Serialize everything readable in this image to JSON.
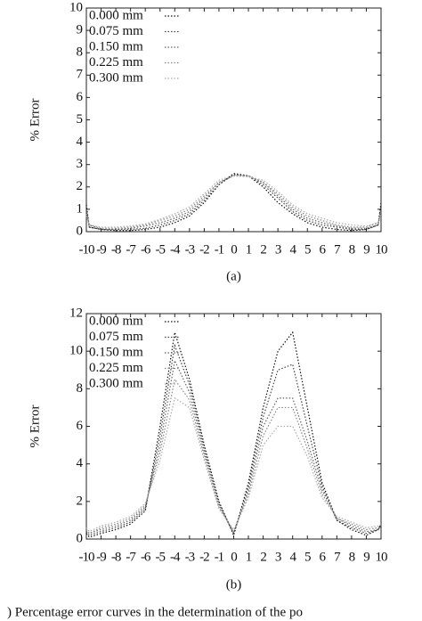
{
  "chart_data": [
    {
      "type": "line",
      "caption": "(a)",
      "y_label": "% Error",
      "x": [
        -10,
        -9.8,
        -9,
        -8,
        -7,
        -6,
        -5,
        -4,
        -3,
        -2,
        -1,
        0,
        1,
        2,
        3,
        4,
        5,
        6,
        7,
        8,
        9,
        9.8,
        10
      ],
      "xlim": [
        -10,
        10
      ],
      "ylim": [
        0,
        10
      ],
      "xticks": [
        -10,
        -9,
        -8,
        -7,
        -6,
        -5,
        -4,
        -3,
        -2,
        -1,
        0,
        1,
        2,
        3,
        4,
        5,
        6,
        7,
        8,
        9,
        10
      ],
      "yticks": [
        0,
        1,
        2,
        3,
        4,
        5,
        6,
        7,
        8,
        9,
        10
      ],
      "series": [
        {
          "name": "0.000 mm",
          "color": "#111111",
          "values": [
            1.2,
            0.2,
            0.1,
            0.05,
            0.05,
            0.1,
            0.2,
            0.4,
            0.7,
            1.3,
            2.1,
            2.6,
            2.5,
            2.0,
            1.3,
            0.8,
            0.4,
            0.2,
            0.1,
            0.05,
            0.1,
            0.3,
            1.3
          ]
        },
        {
          "name": "0.075 mm",
          "color": "#444444",
          "values": [
            1.0,
            0.2,
            0.1,
            0.1,
            0.1,
            0.15,
            0.3,
            0.5,
            0.8,
            1.4,
            2.1,
            2.55,
            2.5,
            2.1,
            1.5,
            0.9,
            0.5,
            0.3,
            0.2,
            0.1,
            0.1,
            0.3,
            1.1
          ]
        },
        {
          "name": "0.150 mm",
          "color": "#666666",
          "values": [
            0.9,
            0.3,
            0.1,
            0.1,
            0.15,
            0.25,
            0.4,
            0.6,
            0.9,
            1.5,
            2.2,
            2.5,
            2.5,
            2.2,
            1.6,
            1.0,
            0.6,
            0.4,
            0.25,
            0.15,
            0.15,
            0.3,
            1.0
          ]
        },
        {
          "name": "0.225 mm",
          "color": "#888888",
          "values": [
            0.8,
            0.3,
            0.15,
            0.15,
            0.2,
            0.3,
            0.5,
            0.7,
            1.0,
            1.6,
            2.2,
            2.5,
            2.5,
            2.2,
            1.7,
            1.1,
            0.7,
            0.5,
            0.3,
            0.2,
            0.2,
            0.4,
            0.9
          ]
        },
        {
          "name": "0.300 mm",
          "color": "#aaaaaa",
          "values": [
            0.7,
            0.3,
            0.2,
            0.2,
            0.25,
            0.35,
            0.55,
            0.8,
            1.1,
            1.7,
            2.3,
            2.5,
            2.45,
            2.3,
            1.8,
            1.2,
            0.8,
            0.6,
            0.4,
            0.3,
            0.25,
            0.4,
            0.8
          ]
        }
      ]
    },
    {
      "type": "line",
      "caption": "(b)",
      "y_label": "% Error",
      "x": [
        -10,
        -9.8,
        -9,
        -8,
        -7,
        -6,
        -5,
        -4,
        -3,
        -2,
        -1,
        0,
        1,
        2,
        3,
        4,
        5,
        6,
        7,
        8,
        9,
        9.8,
        10
      ],
      "xlim": [
        -10,
        10
      ],
      "ylim": [
        0,
        12
      ],
      "xticks": [
        -10,
        -9,
        -8,
        -7,
        -6,
        -5,
        -4,
        -3,
        -2,
        -1,
        0,
        1,
        2,
        3,
        4,
        5,
        6,
        7,
        8,
        9,
        10
      ],
      "yticks": [
        0,
        2,
        4,
        6,
        8,
        10,
        12
      ],
      "series": [
        {
          "name": "0.000 mm",
          "color": "#111111",
          "values": [
            0.3,
            0.1,
            0.3,
            0.5,
            0.8,
            1.5,
            6.0,
            11.0,
            8.5,
            5.0,
            2.0,
            0.2,
            3.0,
            7.0,
            10.0,
            11.0,
            7.0,
            3.0,
            1.0,
            0.5,
            0.2,
            0.5,
            0.8
          ]
        },
        {
          "name": "0.075 mm",
          "color": "#444444",
          "values": [
            0.4,
            0.2,
            0.4,
            0.6,
            0.9,
            1.6,
            5.5,
            10.3,
            8.2,
            4.8,
            1.9,
            0.3,
            2.8,
            6.5,
            9.0,
            9.3,
            6.0,
            2.8,
            1.0,
            0.6,
            0.3,
            0.5,
            0.7
          ]
        },
        {
          "name": "0.150 mm",
          "color": "#666666",
          "values": [
            0.5,
            0.3,
            0.5,
            0.7,
            1.0,
            1.7,
            5.0,
            9.5,
            7.8,
            4.6,
            1.8,
            0.3,
            2.6,
            6.0,
            7.5,
            7.5,
            5.2,
            2.6,
            1.1,
            0.7,
            0.4,
            0.5,
            0.7
          ]
        },
        {
          "name": "0.225 mm",
          "color": "#888888",
          "values": [
            0.5,
            0.3,
            0.6,
            0.8,
            1.1,
            1.8,
            4.6,
            8.5,
            7.4,
            4.4,
            1.7,
            0.4,
            2.4,
            5.5,
            7.0,
            7.0,
            4.8,
            2.4,
            1.1,
            0.8,
            0.5,
            0.6,
            0.7
          ]
        },
        {
          "name": "0.300 mm",
          "color": "#aaaaaa",
          "values": [
            0.6,
            0.4,
            0.7,
            0.9,
            1.2,
            1.9,
            4.2,
            7.5,
            7.0,
            4.2,
            1.6,
            0.5,
            2.2,
            5.0,
            6.0,
            6.0,
            4.4,
            2.2,
            1.2,
            0.9,
            0.6,
            0.7,
            0.8
          ]
        }
      ]
    }
  ],
  "figure_caption": ") Percentage error curves in the determination of the po"
}
